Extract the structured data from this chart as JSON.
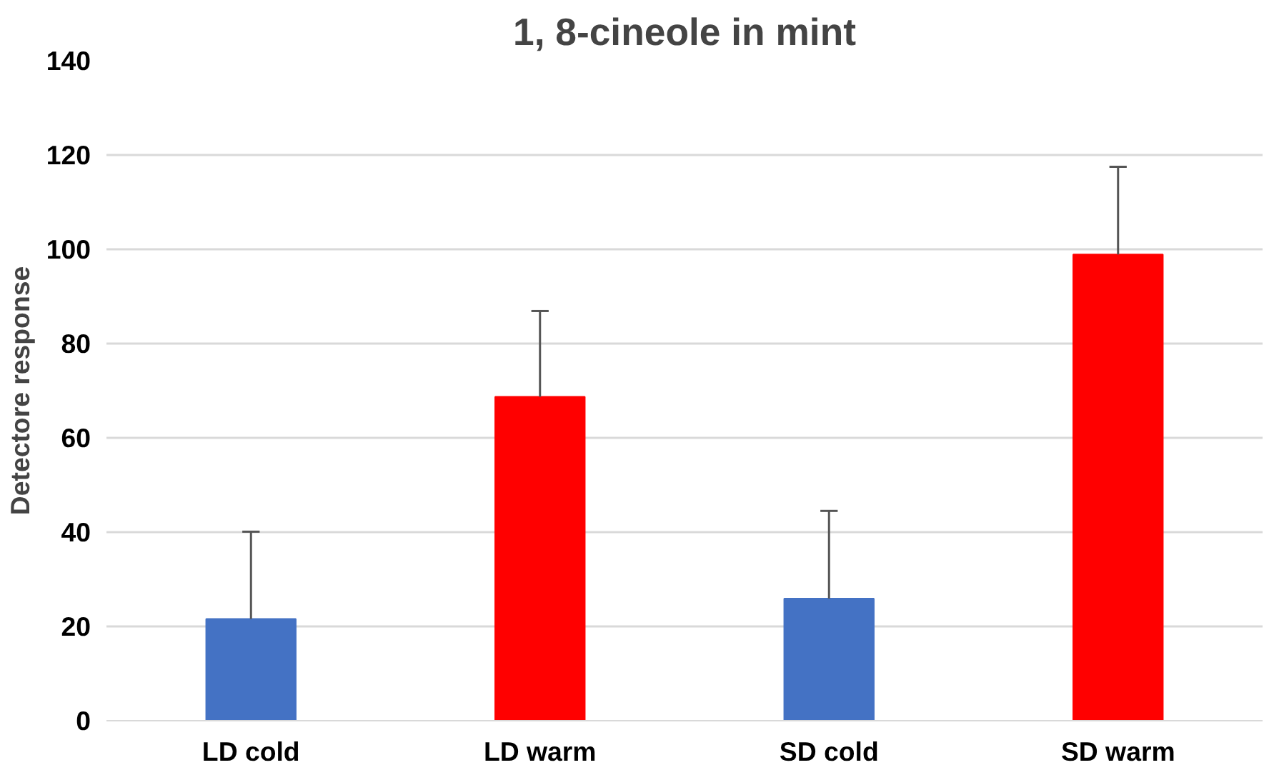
{
  "chart_data": {
    "type": "bar",
    "title": "1, 8-cineole in mint",
    "ylabel": "Detectore response",
    "categories": [
      "LD cold",
      "LD warm",
      "SD cold",
      "SD warm"
    ],
    "values": [
      21.6,
      68.7,
      25.9,
      98.9
    ],
    "colors": [
      "#4472c4",
      "#ff0000",
      "#4472c4",
      "#ff0000"
    ],
    "errors": [
      [
        21.6,
        40.1
      ],
      [
        68.7,
        86.9
      ],
      [
        25.9,
        44.5
      ],
      [
        98.9,
        117.5
      ]
    ],
    "ylim": [
      0,
      140
    ],
    "yticks": [
      0,
      20,
      40,
      60,
      80,
      100,
      120,
      140
    ],
    "grid": "y"
  }
}
